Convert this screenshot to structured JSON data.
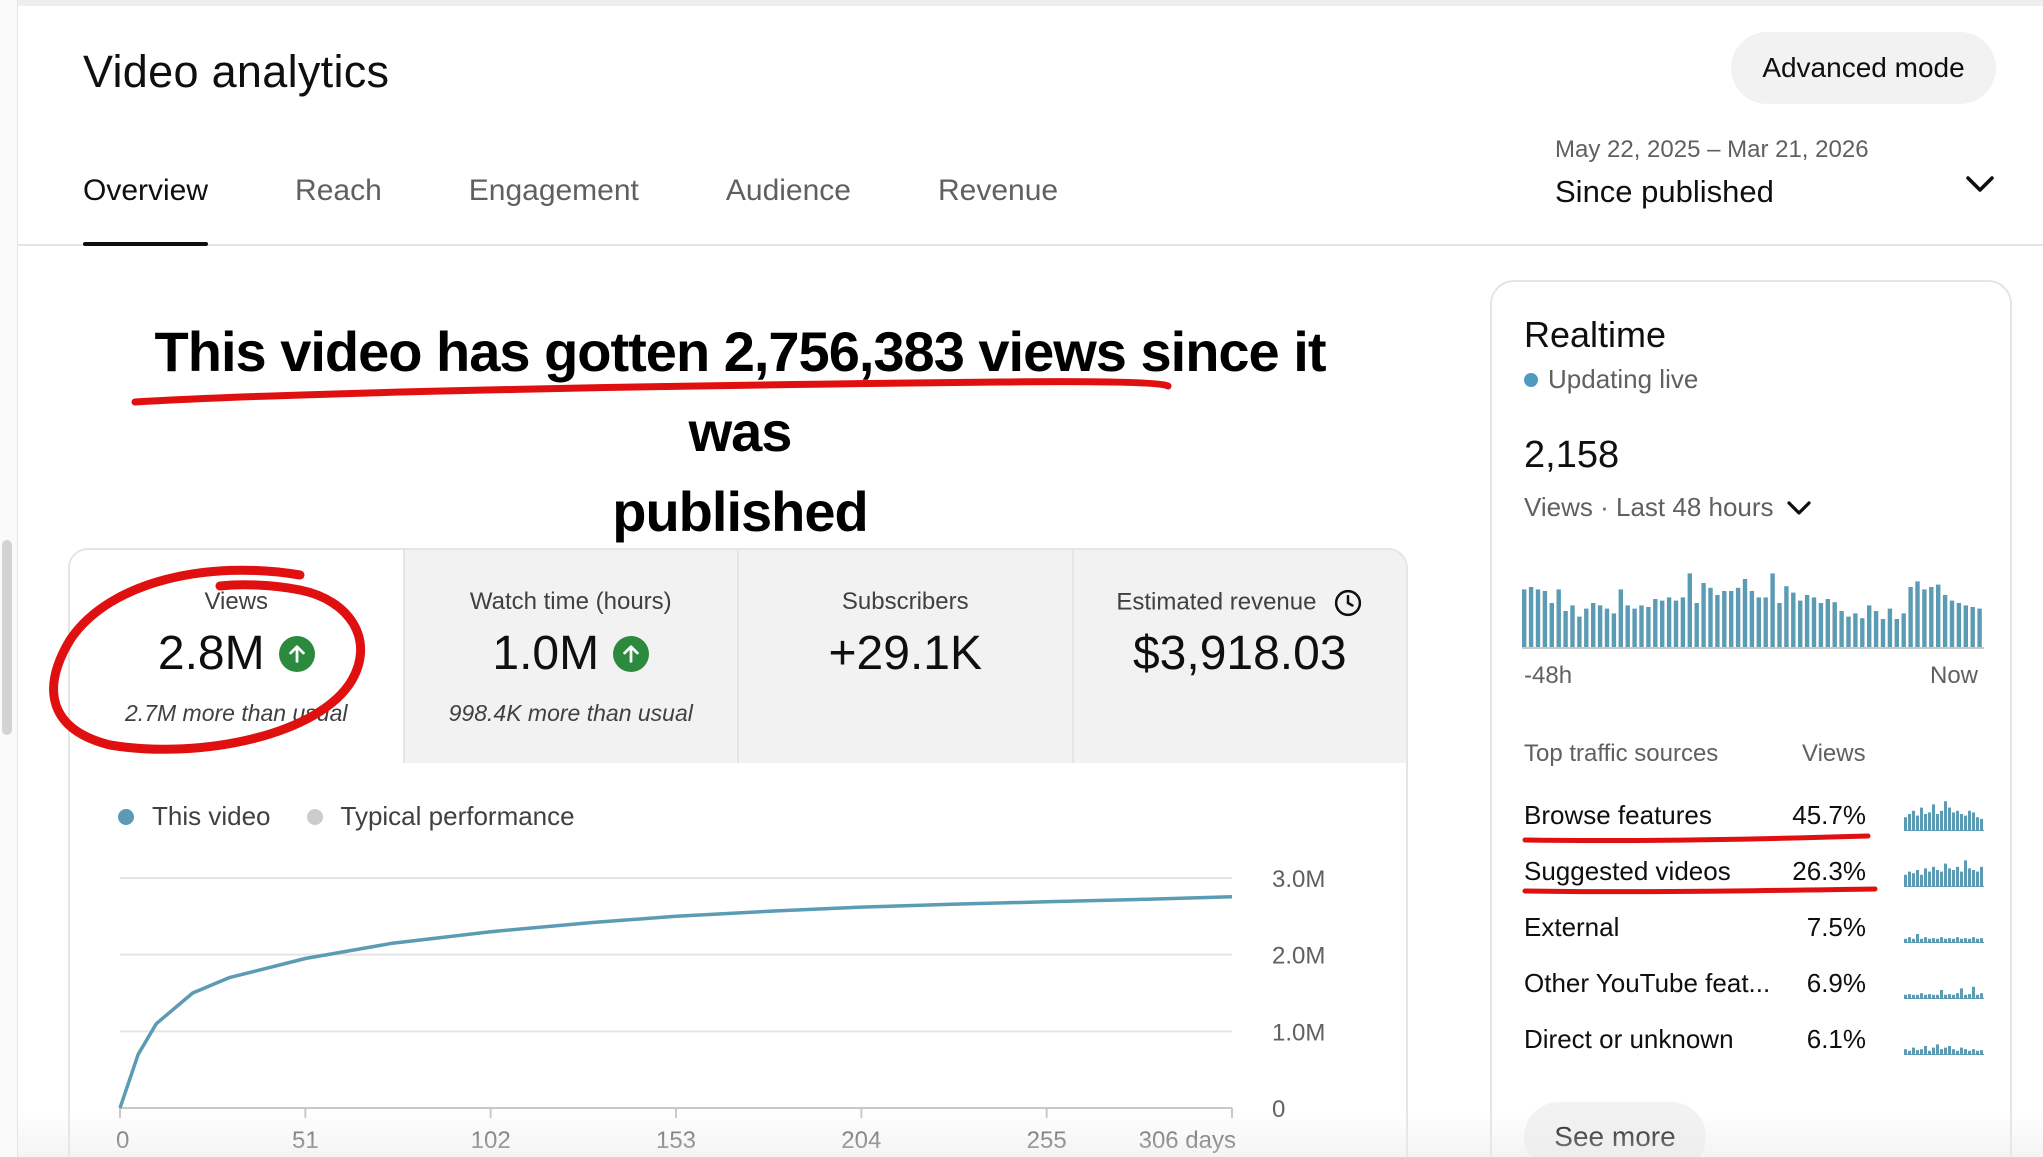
{
  "page": {
    "title": "Video analytics",
    "advanced_button": "Advanced mode",
    "tabs": [
      "Overview",
      "Reach",
      "Engagement",
      "Audience",
      "Revenue"
    ],
    "active_tab": "Overview",
    "date_range": {
      "dates": "May 22, 2025 – Mar 21, 2026",
      "label": "Since published"
    }
  },
  "headline": {
    "line1": "This video has gotten 2,756,383 views since it was",
    "line2": "published"
  },
  "metrics": [
    {
      "label": "Views",
      "value": "2.8M",
      "trend": "up",
      "note": "2.7M more than usual"
    },
    {
      "label": "Watch time (hours)",
      "value": "1.0M",
      "trend": "up",
      "note": "998.4K more than usual"
    },
    {
      "label": "Subscribers",
      "value": "+29.1K"
    },
    {
      "label": "Estimated revenue",
      "value": "$3,918.03"
    }
  ],
  "chart_legend": {
    "this_video": "This video",
    "typical": "Typical performance",
    "this_video_color": "#5b9cb4",
    "typical_color": "#cccccc"
  },
  "chart_data": {
    "type": "line",
    "x": [
      0,
      5,
      10,
      20,
      30,
      51,
      75,
      102,
      130,
      153,
      180,
      204,
      230,
      255,
      280,
      306
    ],
    "series": [
      {
        "values": [
          0,
          700000,
          1100000,
          1500000,
          1700000,
          1950000,
          2150000,
          2300000,
          2420000,
          2500000,
          2570000,
          2620000,
          2660000,
          2690000,
          2720000,
          2756383
        ]
      }
    ],
    "x_ticks": [
      "0",
      "51",
      "102",
      "153",
      "204",
      "255",
      "306 days"
    ],
    "y_ticks": [
      "3.0M",
      "2.0M",
      "1.0M",
      "0"
    ],
    "xlim": [
      0,
      306
    ],
    "ylim": [
      0,
      3000000
    ],
    "grid": true
  },
  "realtime": {
    "title": "Realtime",
    "live_label": "Updating live",
    "count": "2,158",
    "period": "Views · Last 48 hours",
    "axis_start": "-48h",
    "axis_end": "Now",
    "bars": [
      0.72,
      0.75,
      0.72,
      0.7,
      0.55,
      0.72,
      0.45,
      0.52,
      0.38,
      0.48,
      0.55,
      0.52,
      0.48,
      0.42,
      0.72,
      0.52,
      0.48,
      0.52,
      0.5,
      0.6,
      0.58,
      0.62,
      0.58,
      0.62,
      0.92,
      0.55,
      0.8,
      0.74,
      0.65,
      0.7,
      0.7,
      0.74,
      0.85,
      0.7,
      0.62,
      0.62,
      0.92,
      0.55,
      0.76,
      0.68,
      0.58,
      0.65,
      0.62,
      0.55,
      0.6,
      0.56,
      0.45,
      0.38,
      0.42,
      0.36,
      0.52,
      0.45,
      0.35,
      0.48,
      0.35,
      0.42,
      0.75,
      0.82,
      0.72,
      0.75,
      0.78,
      0.65,
      0.58,
      0.55,
      0.52,
      0.5,
      0.48
    ],
    "bar_color": "#5b9cb4",
    "traffic_header": {
      "source": "Top traffic sources",
      "views": "Views"
    },
    "traffic_sources": [
      {
        "name": "Browse features",
        "pct": "45.7%",
        "spark": [
          0.4,
          0.5,
          0.6,
          0.45,
          0.7,
          0.5,
          0.55,
          0.8,
          0.5,
          0.6,
          0.9,
          0.7,
          0.55,
          0.6,
          0.5,
          0.45,
          0.6,
          0.55,
          0.4,
          0.35
        ]
      },
      {
        "name": "Suggested videos",
        "pct": "26.3%",
        "spark": [
          0.35,
          0.45,
          0.4,
          0.5,
          0.35,
          0.55,
          0.45,
          0.6,
          0.5,
          0.45,
          0.7,
          0.55,
          0.5,
          0.6,
          0.45,
          0.8,
          0.55,
          0.5,
          0.45,
          0.6
        ]
      },
      {
        "name": "External",
        "pct": "7.5%",
        "spark": [
          0.1,
          0.15,
          0.1,
          0.25,
          0.1,
          0.15,
          0.1,
          0.12,
          0.1,
          0.15,
          0.1,
          0.12,
          0.1,
          0.15,
          0.1,
          0.12,
          0.1,
          0.15,
          0.1,
          0.12
        ]
      },
      {
        "name": "Other YouTube feat...",
        "pct": "6.9%",
        "spark": [
          0.1,
          0.12,
          0.1,
          0.1,
          0.15,
          0.1,
          0.12,
          0.1,
          0.1,
          0.25,
          0.1,
          0.12,
          0.1,
          0.15,
          0.3,
          0.1,
          0.12,
          0.35,
          0.1,
          0.15
        ]
      },
      {
        "name": "Direct or unknown",
        "pct": "6.1%",
        "spark": [
          0.15,
          0.1,
          0.2,
          0.12,
          0.15,
          0.25,
          0.1,
          0.2,
          0.3,
          0.15,
          0.2,
          0.25,
          0.15,
          0.1,
          0.2,
          0.15,
          0.1,
          0.15,
          0.1,
          0.12
        ]
      }
    ],
    "see_more": "See more"
  }
}
